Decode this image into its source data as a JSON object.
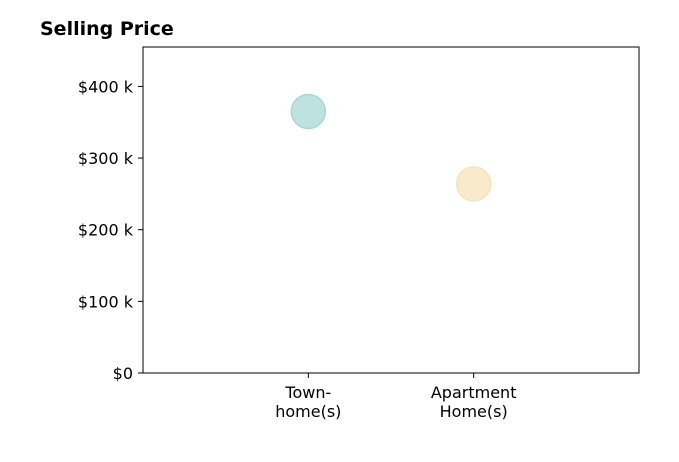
{
  "chart_data": {
    "type": "scatter",
    "title": "Selling Price",
    "xlabel": "",
    "ylabel": "",
    "categories": [
      [
        "Town-",
        "home(s)"
      ],
      [
        "Apartment",
        "Home(s)"
      ]
    ],
    "x_categories_full": [
      "Town-home(s)",
      "Apartment Home(s)"
    ],
    "y_ticks": [
      0,
      100000,
      200000,
      300000,
      400000
    ],
    "y_tick_labels": [
      "$0",
      "$100 k",
      "$200 k",
      "$300 k",
      "$400 k"
    ],
    "ylim": [
      0,
      455000
    ],
    "grid": false,
    "points": [
      {
        "category": "Town-home(s)",
        "value": 365000,
        "color": "#a8d8d4"
      },
      {
        "category": "Apartment Home(s)",
        "value": 264000,
        "color": "#f7e3bb"
      }
    ]
  }
}
